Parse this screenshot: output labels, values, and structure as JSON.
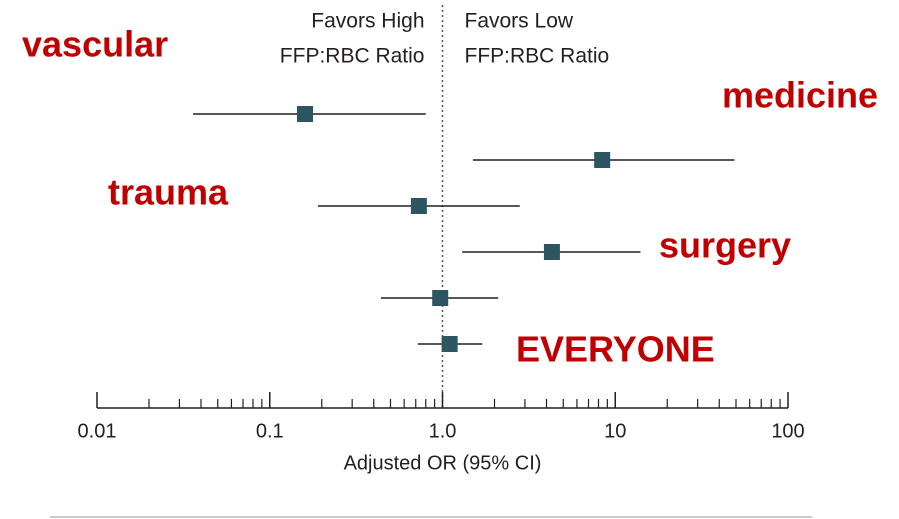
{
  "chart_data": {
    "type": "forest",
    "favors_labels": [
      [
        "Favors High",
        "FFP:RBC Ratio"
      ],
      [
        "Favors Low",
        "FFP:RBC Ratio"
      ]
    ],
    "annotations": [
      "vascular",
      "medicine",
      "trauma",
      "surgery",
      "EVERYONE"
    ],
    "annotation_color": "#c00000",
    "values": [
      0.16,
      8.4,
      0.73,
      4.3,
      0.97,
      1.1
    ],
    "ci_lower": [
      0.036,
      1.5,
      0.19,
      1.3,
      0.44,
      0.72
    ],
    "ci_upper": [
      0.8,
      49,
      2.8,
      14,
      2.1,
      1.7
    ],
    "color": "#2e5662",
    "x_label": "Adjusted OR (95% CI)",
    "log_x": true,
    "xlim": [
      0.01,
      100
    ],
    "xticks": [
      0.01,
      0.1,
      {
        "value": 1,
        "label": "1.0"
      },
      10,
      100
    ],
    "minor_xticks": [
      0.02,
      0.03,
      0.04,
      0.05,
      0.06,
      0.07,
      0.08,
      0.09,
      0.2,
      0.3,
      0.4,
      0.5,
      0.6,
      0.7,
      0.8,
      0.9,
      2,
      3,
      4,
      5,
      6,
      7,
      8,
      9,
      20,
      30,
      40,
      50,
      60,
      70,
      80,
      90
    ],
    "reference_line": 1
  }
}
